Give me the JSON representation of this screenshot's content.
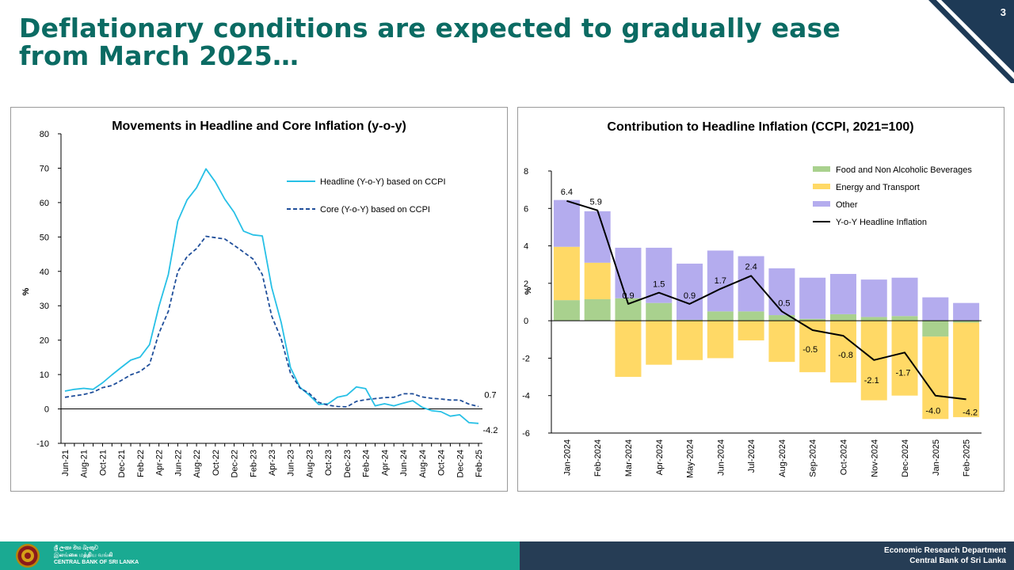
{
  "slide": {
    "title": "Deflationary conditions are expected to gradually ease from March 2025…",
    "page_number": "3"
  },
  "footer": {
    "bank_name_sinhala": "ශ්‍රී ලංකා මහ බැංකුව",
    "bank_name_tamil": "இலங்கை மத்திய வங்கி",
    "bank_name_english": "CENTRAL BANK OF SRI LANKA",
    "department": "Economic Research Department",
    "organization": "Central Bank of Sri Lanka"
  },
  "colors": {
    "title": "#0b6b63",
    "headline": "#27c0e6",
    "core": "#1f4e9a",
    "food": "#a9d18e",
    "energy": "#ffd966",
    "other": "#b4acee",
    "yoy": "#000000",
    "footer_left": "#1aaa92",
    "footer_right": "#263d55"
  },
  "chart_data": [
    {
      "type": "line",
      "title": "Movements in Headline and Core Inflation (y-o-y)",
      "ylabel": "%",
      "xlabel": "",
      "ylim": [
        -10,
        80
      ],
      "yticks": [
        "-10",
        "0",
        "10",
        "20",
        "30",
        "40",
        "50",
        "60",
        "70",
        "80"
      ],
      "x": [
        "Jun-21",
        "Jul-21",
        "Aug-21",
        "Sep-21",
        "Oct-21",
        "Nov-21",
        "Dec-21",
        "Jan-22",
        "Feb-22",
        "Mar-22",
        "Apr-22",
        "May-22",
        "Jun-22",
        "Jul-22",
        "Aug-22",
        "Sep-22",
        "Oct-22",
        "Nov-22",
        "Dec-22",
        "Jan-23",
        "Feb-23",
        "Mar-23",
        "Apr-23",
        "May-23",
        "Jun-23",
        "Jul-23",
        "Aug-23",
        "Sep-23",
        "Oct-23",
        "Nov-23",
        "Dec-23",
        "Jan-24",
        "Feb-24",
        "Mar-24",
        "Apr-24",
        "May-24",
        "Jun-24",
        "Jul-24",
        "Aug-24",
        "Sep-24",
        "Oct-24",
        "Nov-24",
        "Dec-24",
        "Jan-25",
        "Feb-25"
      ],
      "x_tick_labels": [
        "Jun-21",
        "Aug-21",
        "Oct-21",
        "Dec-21",
        "Feb-22",
        "Apr-22",
        "Jun-22",
        "Aug-22",
        "Oct-22",
        "Dec-22",
        "Feb-23",
        "Apr-23",
        "Jun-23",
        "Aug-23",
        "Oct-23",
        "Dec-23",
        "Feb-24",
        "Apr-24",
        "Jun-24",
        "Aug-24",
        "Oct-24",
        "Dec-24",
        "Feb-25"
      ],
      "legend_position": "top-right",
      "series": [
        {
          "name": "Headline (Y-o-Y) based on CCPI",
          "style": "solid",
          "values": [
            5.2,
            5.7,
            6.0,
            5.7,
            7.6,
            9.9,
            12.1,
            14.2,
            15.1,
            18.7,
            29.8,
            39.1,
            54.6,
            60.8,
            64.3,
            69.8,
            66.0,
            61.0,
            57.2,
            51.7,
            50.6,
            50.3,
            35.3,
            25.2,
            12.0,
            6.3,
            4.0,
            1.3,
            1.5,
            3.4,
            4.0,
            6.4,
            5.9,
            0.9,
            1.5,
            0.9,
            1.7,
            2.4,
            0.5,
            -0.5,
            -0.8,
            -2.1,
            -1.7,
            -4.0,
            -4.2
          ],
          "end_label": "-4.2"
        },
        {
          "name": "Core (Y-o-Y) based on CCPI",
          "style": "dashed",
          "values": [
            3.4,
            3.8,
            4.2,
            4.9,
            6.2,
            6.8,
            8.3,
            9.9,
            10.9,
            13.0,
            22.0,
            28.4,
            39.9,
            44.3,
            46.6,
            50.2,
            49.8,
            49.4,
            47.6,
            45.6,
            43.6,
            39.1,
            27.0,
            20.4,
            10.4,
            6.1,
            4.5,
            1.9,
            1.1,
            0.7,
            0.6,
            2.2,
            2.7,
            3.0,
            3.3,
            3.4,
            4.4,
            4.4,
            3.5,
            3.1,
            2.9,
            2.6,
            2.6,
            1.4,
            0.7
          ],
          "end_label": "0.7"
        }
      ]
    },
    {
      "type": "bar",
      "stacked": true,
      "title": "Contribution to Headline Inflation (CCPI, 2021=100)",
      "ylabel": "%",
      "xlabel": "",
      "ylim": [
        -6,
        8
      ],
      "yticks": [
        "-6",
        "-4",
        "-2",
        "0",
        "2",
        "4",
        "6",
        "8"
      ],
      "categories": [
        "Jan-2024",
        "Feb-2024",
        "Mar-2024",
        "Apr-2024",
        "May-2024",
        "Jun-2024",
        "Jul-2024",
        "Aug-2024",
        "Sep-2024",
        "Oct-2024",
        "Nov-2024",
        "Dec-2024",
        "Jan-2025",
        "Feb-2025"
      ],
      "legend_position": "top-right",
      "series": [
        {
          "name": "Food and Non Alcoholic Beverages",
          "kind": "bar",
          "values": [
            1.1,
            1.15,
            1.2,
            0.95,
            0.05,
            0.5,
            0.5,
            0.3,
            0.1,
            0.35,
            0.2,
            0.25,
            -0.85,
            -0.1
          ]
        },
        {
          "name": "Energy and Transport",
          "kind": "bar",
          "values": [
            2.85,
            1.95,
            -3.0,
            -2.35,
            -2.1,
            -2.0,
            -1.05,
            -2.2,
            -2.75,
            -3.3,
            -4.25,
            -4.0,
            -4.4,
            -5.05
          ]
        },
        {
          "name": "Other",
          "kind": "bar",
          "values": [
            2.5,
            2.75,
            2.7,
            2.95,
            3.0,
            3.25,
            2.95,
            2.5,
            2.2,
            2.15,
            2.0,
            2.05,
            1.25,
            0.95
          ]
        },
        {
          "name": "Y-o-Y Headline Inflation",
          "kind": "line",
          "values": [
            6.4,
            5.9,
            0.9,
            1.5,
            0.9,
            1.7,
            2.4,
            0.5,
            -0.5,
            -0.8,
            -2.1,
            -1.7,
            -4.0,
            -4.2
          ],
          "labels": [
            "6.4",
            "5.9",
            "0.9",
            "1.5",
            "0.9",
            "1.7",
            "2.4",
            "0.5",
            "-0.5",
            "-0.8",
            "-2.1",
            "-1.7",
            "-4.0",
            "-4.2"
          ]
        }
      ]
    }
  ]
}
